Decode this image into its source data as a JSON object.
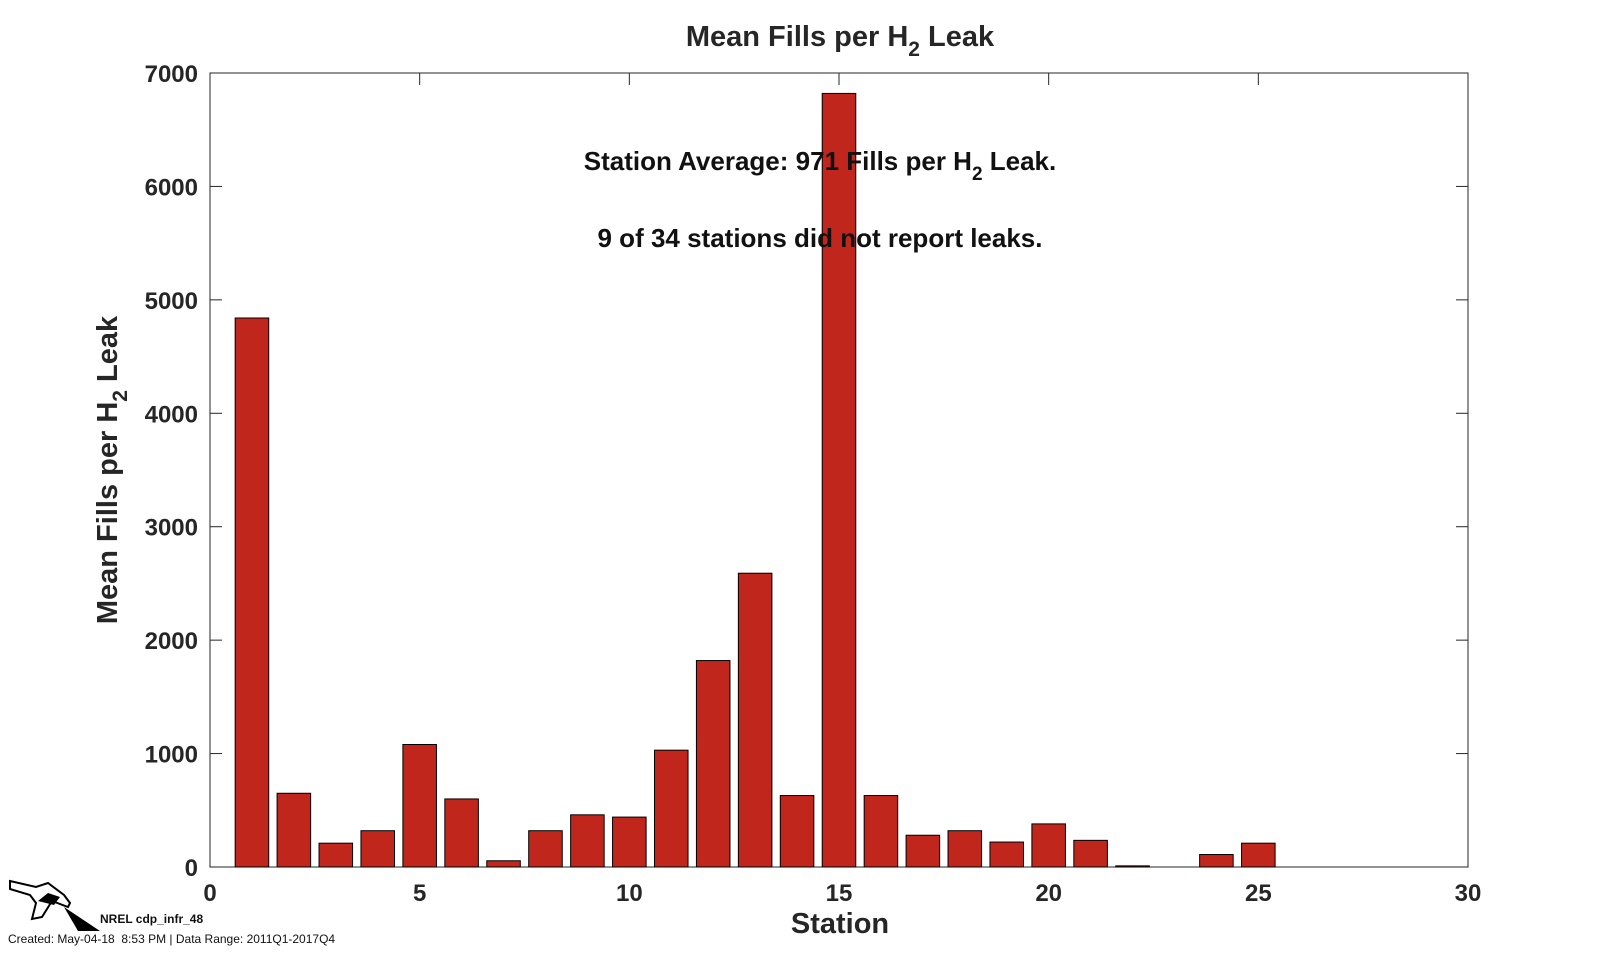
{
  "chart_data": {
    "type": "bar",
    "title_main": "Mean Fills per H",
    "title_sub": "2",
    "title_tail": " Leak",
    "xlabel": "Station",
    "ylabel_main": "Mean Fills per H",
    "ylabel_sub": "2",
    "ylabel_tail": " Leak",
    "xlim": [
      0,
      30
    ],
    "ylim": [
      0,
      7000
    ],
    "xticks": [
      0,
      5,
      10,
      15,
      20,
      25,
      30
    ],
    "yticks": [
      0,
      1000,
      2000,
      3000,
      4000,
      5000,
      6000,
      7000
    ],
    "x": [
      1,
      2,
      3,
      4,
      5,
      6,
      7,
      8,
      9,
      10,
      11,
      12,
      13,
      14,
      15,
      16,
      17,
      18,
      19,
      20,
      21,
      22,
      23,
      24,
      25
    ],
    "values": [
      4840,
      650,
      210,
      320,
      1080,
      600,
      55,
      320,
      460,
      440,
      1030,
      1820,
      2590,
      630,
      6820,
      630,
      280,
      320,
      220,
      380,
      235,
      10,
      0,
      110,
      210
    ],
    "bar_color": "#c0261c",
    "grid": false,
    "annotations": {
      "avg_main": "Station Average: 971 Fills per H",
      "avg_sub": "2",
      "avg_tail": " Leak.",
      "not_reported": "9 of 34 stations did not report leaks."
    }
  },
  "footer": {
    "code": "NREL cdp_infr_48",
    "created": "Created: May-04-18  8:53 PM | Data Range: 2011Q1-2017Q4"
  },
  "icons": {
    "logo": "fuel-nozzle-icon"
  }
}
